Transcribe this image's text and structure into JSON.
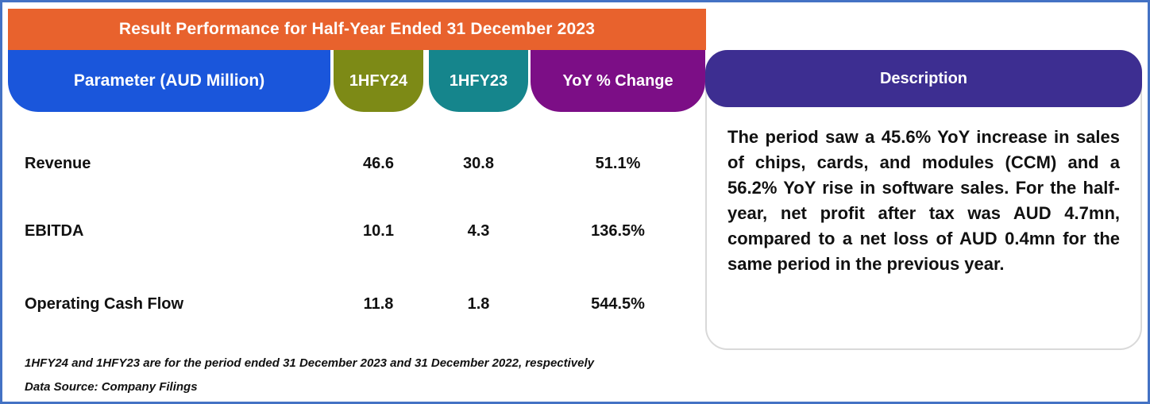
{
  "chart_data": {
    "type": "table",
    "title": "Result Performance for Half-Year Ended 31 December 2023",
    "columns": [
      "Parameter (AUD Million)",
      "1HFY24",
      "1HFY23",
      "YoY % Change",
      "Description"
    ],
    "rows": [
      [
        "Revenue",
        "46.6",
        "30.8",
        "51.1%"
      ],
      [
        "EBITDA",
        "10.1",
        "4.3",
        "136.5%"
      ],
      [
        "Operating Cash Flow",
        "11.8",
        "1.8",
        "544.5%"
      ]
    ],
    "description": "The period saw a 45.6% YoY increase in sales of chips, cards, and modules (CCM) and a 56.2% YoY rise in software sales. For the half-year, net profit after tax was AUD 4.7mn, compared to a net loss of AUD 0.4mn for the same period in the previous year.",
    "footnotes": [
      "1HFY24 and 1HFY23 are for the period ended 31 December 2023 and 31 December 2022, respectively",
      "Data Source: Company Filings"
    ]
  },
  "header": {
    "parameter": "Parameter (AUD Million)",
    "hfy24": "1HFY24",
    "hfy23": "1HFY23",
    "yoy": "YoY % Change",
    "description": "Description"
  },
  "colors": {
    "title_bg": "#E8622D",
    "parameter_bg": "#1A56DB",
    "hfy24_bg": "#7D8A16",
    "hfy23_bg": "#15858C",
    "yoy_bg": "#7C0E86",
    "description_bg": "#3D2E91",
    "page_border": "#4472C4",
    "panel_border": "#D9D9D9",
    "text_color": "#111111"
  }
}
